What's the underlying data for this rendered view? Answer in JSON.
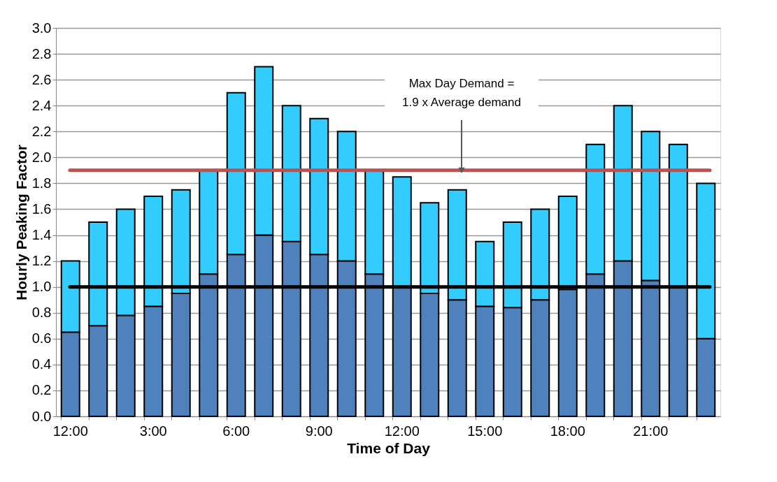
{
  "chart_data": {
    "type": "bar",
    "stacked": true,
    "xlabel": "Time of Day",
    "ylabel": "Hourly Peaking Factor",
    "categories": [
      "12:00",
      null,
      null,
      "3:00",
      null,
      null,
      "6:00",
      null,
      null,
      "9:00",
      null,
      null,
      "12:00",
      null,
      null,
      "15:00",
      null,
      null,
      "18:00",
      null,
      null,
      "21:00",
      null,
      null
    ],
    "series": [
      {
        "color": "#4f81bd",
        "values": [
          0.65,
          0.7,
          0.78,
          0.85,
          0.95,
          1.1,
          1.25,
          1.4,
          1.35,
          1.25,
          1.2,
          1.1,
          1.0,
          0.95,
          0.9,
          0.85,
          0.84,
          0.9,
          0.98,
          1.1,
          1.2,
          1.05,
          1.0,
          0.6
        ]
      },
      {
        "color": "#33ccff",
        "values": [
          0.55,
          0.8,
          0.82,
          0.85,
          0.8,
          0.8,
          1.25,
          1.3,
          1.05,
          1.05,
          1.0,
          0.8,
          0.85,
          0.7,
          0.85,
          0.5,
          0.66,
          0.7,
          0.72,
          1.0,
          1.2,
          1.15,
          1.1,
          1.2
        ]
      }
    ],
    "ylim": [
      0,
      3.0
    ],
    "yticks": [
      {
        "value": 0,
        "label": "0.0"
      },
      0.2,
      0.4,
      0.6,
      0.8,
      {
        "value": 1,
        "label": "1.0"
      },
      1.2,
      1.4,
      1.6,
      1.8,
      {
        "value": 2,
        "label": "2.0"
      },
      2.2,
      2.4,
      2.6,
      2.8,
      {
        "value": 3,
        "label": "3.0"
      }
    ],
    "grid": "y",
    "legend": false,
    "ref_lines": [
      {
        "axis": "y",
        "value": 1.0,
        "label": null,
        "color": "#000000"
      },
      {
        "axis": "y",
        "value": 1.9,
        "label": "Max Day Demand =\n1.9 x Average demand",
        "color": "#c0504d"
      }
    ]
  }
}
